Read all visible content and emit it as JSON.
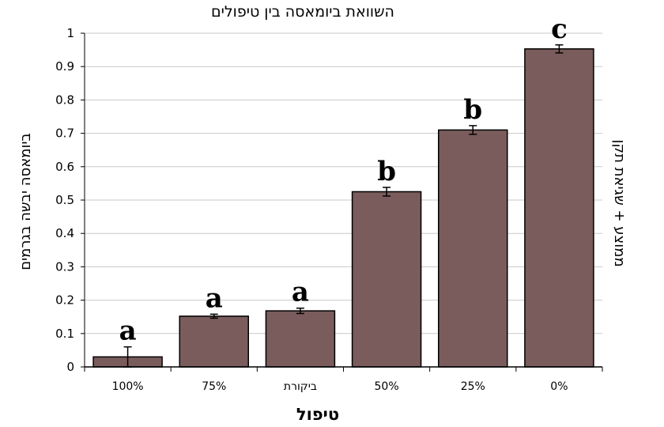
{
  "chart_data": {
    "type": "bar",
    "title": "השוואת ביומאסה בין טיפולים",
    "xlabel": "טיפול",
    "ylabel": "ביומאסה יבשה בגרמים",
    "ylabel_right": "ממוצע + שגיאת תקן",
    "categories": [
      "100%",
      "75%",
      "ביקורת",
      "50%",
      "25%",
      "0%"
    ],
    "values": [
      0.03,
      0.152,
      0.168,
      0.525,
      0.71,
      0.953
    ],
    "errors": [
      0.03,
      0.006,
      0.008,
      0.013,
      0.013,
      0.012
    ],
    "significance_letters": [
      "a",
      "a",
      "a",
      "b",
      "b",
      "c"
    ],
    "ylim": [
      0,
      1
    ],
    "yticks": [
      "0",
      "0.1",
      "0.2",
      "0.3",
      "0.4",
      "0.5",
      "0.6",
      "0.7",
      "0.8",
      "0.9",
      "1"
    ],
    "grid": true,
    "bar_color": "#7a5c5c",
    "grid_color": "#c8c8c8"
  }
}
